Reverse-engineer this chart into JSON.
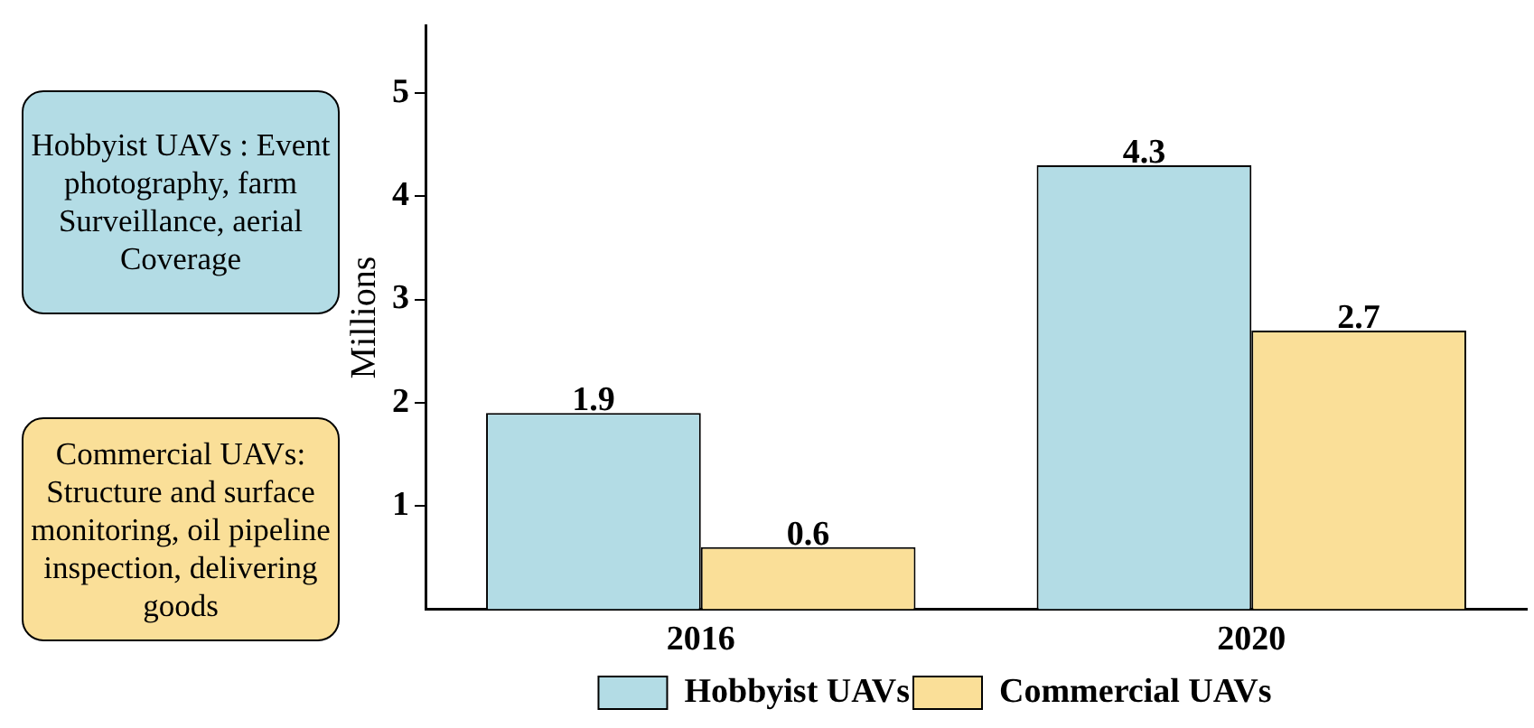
{
  "chart_data": {
    "type": "bar",
    "ylabel": "Millions",
    "categories": [
      "2016",
      "2020"
    ],
    "series": [
      {
        "name": "Hobbyist UAVs",
        "color": "#b3dce5",
        "values": [
          1.9,
          4.3
        ]
      },
      {
        "name": "Commercial UAVs",
        "color": "#fadf98",
        "values": [
          0.6,
          2.7
        ]
      }
    ],
    "ylim": [
      0,
      5.65
    ],
    "yticks": [
      1,
      2,
      3,
      4,
      5
    ],
    "grid": false,
    "legend": "bottom",
    "data_labels": true,
    "annotations": [
      "Hobbyist UAVs : Event photography, farm Surveillance, aerial Coverage",
      "Commercial UAVs: Structure and surface monitoring, oil pipeline inspection, delivering goods"
    ]
  }
}
